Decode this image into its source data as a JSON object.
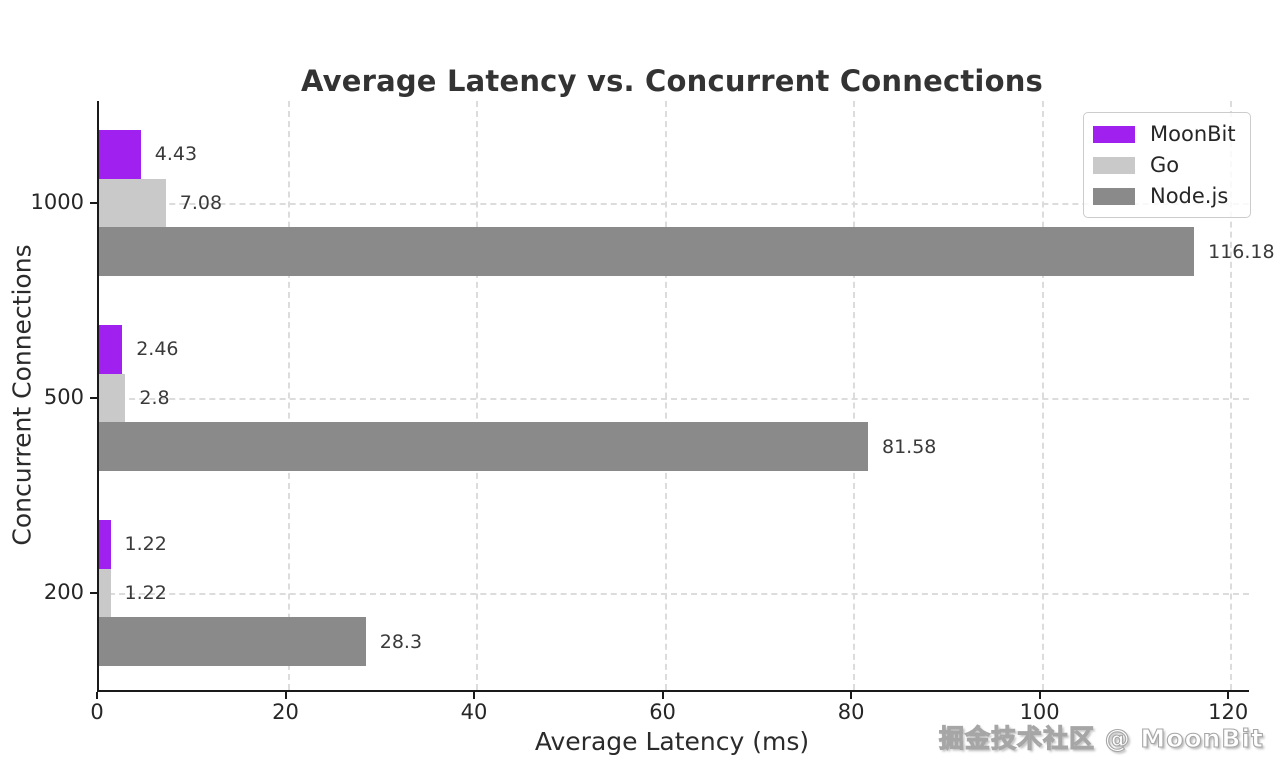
{
  "figure": {
    "watermark": "掘金技术社区 @ MoonBit"
  },
  "chart_data": {
    "type": "bar",
    "orientation": "horizontal",
    "title": "Average Latency vs. Concurrent Connections",
    "xlabel": "Average Latency (ms)",
    "ylabel": "Concurrent Connections",
    "categories": [
      "1000",
      "500",
      "200"
    ],
    "series": [
      {
        "name": "MoonBit",
        "color": "#A020F0",
        "values": [
          4.43,
          2.46,
          1.22
        ],
        "labels": [
          "4.43",
          "2.46",
          "1.22"
        ]
      },
      {
        "name": "Go",
        "color": "#C9C9C9",
        "values": [
          7.08,
          2.8,
          1.22
        ],
        "labels": [
          "7.08",
          "2.8",
          "1.22"
        ]
      },
      {
        "name": "Node.js",
        "color": "#8A8A8A",
        "values": [
          116.18,
          81.58,
          28.3
        ],
        "labels": [
          "116.18",
          "81.58",
          "28.3"
        ]
      }
    ],
    "xlim": [
      0,
      122
    ],
    "xticks": [
      0,
      20,
      40,
      60,
      80,
      100,
      120
    ],
    "xtick_labels": [
      "0",
      "20",
      "40",
      "60",
      "80",
      "100",
      "120"
    ],
    "grid": "dashed",
    "legend_position": "upper right",
    "value_labels_shown": true
  }
}
